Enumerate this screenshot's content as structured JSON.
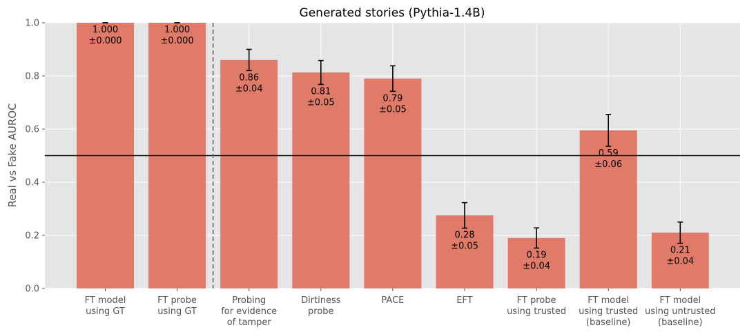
{
  "chart_data": {
    "type": "bar",
    "title": "Generated stories (Pythia-1.4B)",
    "xlabel": "",
    "ylabel": "Real vs Fake AUROC",
    "ylim": [
      0,
      1
    ],
    "yticks": [
      "0.0",
      "0.2",
      "0.4",
      "0.6",
      "0.8",
      "1.0"
    ],
    "grid": true,
    "categories": [
      [
        "FT model",
        "using GT"
      ],
      [
        "FT probe",
        "using GT"
      ],
      [
        "Probing",
        "for evidence",
        "of tamper"
      ],
      [
        "Dirtiness",
        "probe"
      ],
      [
        "PACE"
      ],
      [
        "EFT"
      ],
      [
        "FT probe",
        "using trusted"
      ],
      [
        "FT model",
        "using trusted",
        "(baseline)"
      ],
      [
        "FT model",
        "using untrusted",
        "(baseline)"
      ]
    ],
    "values": [
      1.0,
      1.0,
      0.86,
      0.813,
      0.79,
      0.275,
      0.19,
      0.595,
      0.21
    ],
    "errors": [
      0.0,
      0.0,
      0.04,
      0.045,
      0.048,
      0.048,
      0.038,
      0.06,
      0.04
    ],
    "value_labels": [
      "1.000",
      "1.000",
      "0.86",
      "0.81",
      "0.79",
      "0.28",
      "0.19",
      "0.59",
      "0.21"
    ],
    "error_labels": [
      "±0.000",
      "±0.000",
      "±0.04",
      "±0.05",
      "±0.05",
      "±0.05",
      "±0.04",
      "±0.06",
      "±0.04"
    ],
    "reference_line": 0.5,
    "divider_after_index": 1,
    "colors": {
      "bar": "#e07a69",
      "background": "#e5e5e5",
      "grid": "#ffffff",
      "error": "#000000",
      "reference": "#000000",
      "divider": "#777777"
    }
  }
}
